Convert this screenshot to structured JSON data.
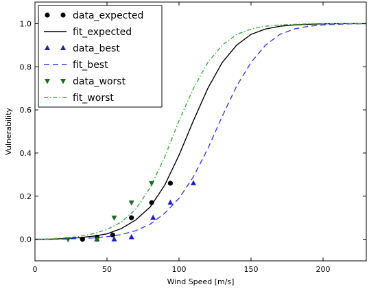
{
  "chart_data": {
    "type": "scatter",
    "xlabel": "Wind Speed [m/s]",
    "ylabel": "Vulnerability",
    "xlim": [
      0,
      230
    ],
    "ylim": [
      -0.1,
      1.1
    ],
    "xticks": [
      0,
      50,
      100,
      150,
      200
    ],
    "yticks": [
      0.0,
      0.2,
      0.4,
      0.6,
      0.8,
      1.0
    ],
    "grid": false,
    "legend_position": "top-left",
    "series": [
      {
        "name": "data_expected",
        "kind": "points",
        "marker": "circle",
        "color": "#000000",
        "x": [
          33,
          43,
          54,
          67,
          81,
          94
        ],
        "y": [
          0.0,
          0.01,
          0.02,
          0.1,
          0.17,
          0.26
        ]
      },
      {
        "name": "fit_expected",
        "kind": "line",
        "style": "solid",
        "color": "#000000",
        "x": [
          0,
          10,
          20,
          30,
          40,
          50,
          60,
          70,
          80,
          90,
          100,
          110,
          120,
          130,
          140,
          150,
          160,
          170,
          180,
          190,
          200,
          210,
          220,
          230
        ],
        "y": [
          0.0,
          0.0,
          0.003,
          0.007,
          0.014,
          0.025,
          0.05,
          0.09,
          0.15,
          0.25,
          0.39,
          0.55,
          0.7,
          0.82,
          0.9,
          0.95,
          0.975,
          0.988,
          0.994,
          0.997,
          0.999,
          1.0,
          1.0,
          1.0
        ]
      },
      {
        "name": "data_best",
        "kind": "points",
        "marker": "triangle-up",
        "color": "#1f1fbf",
        "x": [
          43,
          55,
          67,
          82,
          94,
          110
        ],
        "y": [
          0.0,
          0.0,
          0.01,
          0.1,
          0.17,
          0.26
        ]
      },
      {
        "name": "fit_best",
        "kind": "line",
        "style": "dashed",
        "color": "#3a3ad6",
        "x": [
          0,
          10,
          20,
          30,
          40,
          50,
          60,
          70,
          80,
          90,
          100,
          110,
          120,
          130,
          140,
          150,
          160,
          170,
          180,
          190,
          200,
          210,
          220,
          230
        ],
        "y": [
          0.0,
          0.0,
          0.001,
          0.003,
          0.006,
          0.012,
          0.022,
          0.04,
          0.07,
          0.12,
          0.19,
          0.29,
          0.42,
          0.57,
          0.71,
          0.82,
          0.9,
          0.95,
          0.975,
          0.988,
          0.994,
          0.997,
          0.999,
          1.0
        ]
      },
      {
        "name": "data_worst",
        "kind": "points",
        "marker": "triangle-down",
        "color": "#1e6b1e",
        "x": [
          23,
          43,
          55,
          67,
          81
        ],
        "y": [
          0.0,
          0.0,
          0.1,
          0.17,
          0.26
        ]
      },
      {
        "name": "fit_worst",
        "kind": "line",
        "style": "dashdot",
        "color": "#3aa83a",
        "x": [
          0,
          10,
          20,
          30,
          40,
          50,
          60,
          70,
          80,
          90,
          100,
          110,
          120,
          130,
          140,
          150,
          160,
          170,
          180,
          190,
          200,
          210,
          220,
          230
        ],
        "y": [
          0.0,
          0.002,
          0.006,
          0.012,
          0.025,
          0.045,
          0.08,
          0.14,
          0.24,
          0.38,
          0.55,
          0.7,
          0.82,
          0.9,
          0.95,
          0.975,
          0.988,
          0.994,
          0.997,
          0.999,
          1.0,
          1.0,
          1.0,
          1.0
        ]
      }
    ]
  }
}
